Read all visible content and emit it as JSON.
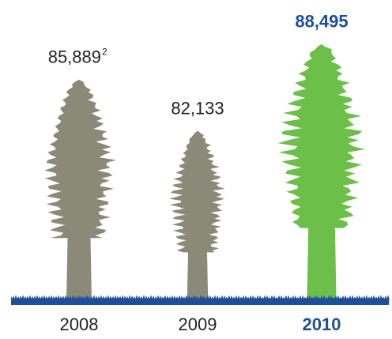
{
  "chart_data": {
    "type": "tree",
    "categories": [
      "2008",
      "2009",
      "2010"
    ],
    "values": [
      85889,
      82133,
      88495
    ],
    "value_labels": [
      "85,889",
      "82,133",
      "88,495"
    ],
    "value_footnotes": [
      "2",
      null,
      null
    ],
    "colors": [
      "#8b8a79",
      "#8b8a79",
      "#6cc04a"
    ],
    "highlight": "2010",
    "highlight_color": "#1f4f9a",
    "ground_color": "#1f4f9a",
    "ylim": [
      70000,
      89000
    ]
  }
}
